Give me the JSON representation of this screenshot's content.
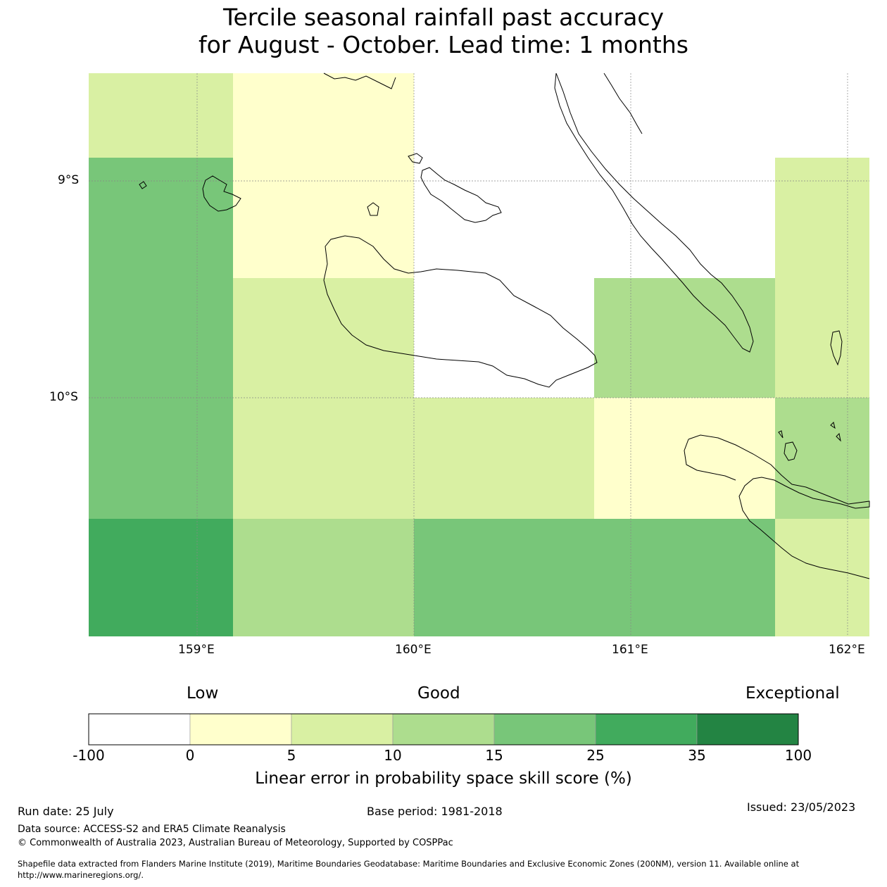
{
  "title_line1": "Tercile seasonal rainfall past accuracy",
  "title_line2": "for August - October. Lead time: 1 months",
  "map": {
    "lon_ticks": [
      "159°E",
      "160°E",
      "161°E",
      "162°E"
    ],
    "lat_ticks": [
      "9°S",
      "10°S"
    ],
    "gridlines": true,
    "coastline_color": "#000000"
  },
  "colors": {
    "white": "#ffffff",
    "light_yellow": "#ffffcc",
    "pale_green": "#d9f0a3",
    "light_green": "#addd8e",
    "mid_green": "#78c679",
    "green": "#41ab5d",
    "dark_green": "#238443"
  },
  "grid_cells": [
    {
      "row": 0,
      "col": 0,
      "color": "pale_green"
    },
    {
      "row": 0,
      "col": 1,
      "color": "light_yellow"
    },
    {
      "row": 0,
      "col": 2,
      "color": "white"
    },
    {
      "row": 0,
      "col": 3,
      "color": "white"
    },
    {
      "row": 0,
      "col": 4,
      "color": "white"
    },
    {
      "row": 1,
      "col": 0,
      "color": "mid_green"
    },
    {
      "row": 1,
      "col": 1,
      "color": "light_yellow"
    },
    {
      "row": 1,
      "col": 2,
      "color": "white"
    },
    {
      "row": 1,
      "col": 3,
      "color": "white"
    },
    {
      "row": 1,
      "col": 4,
      "color": "pale_green"
    },
    {
      "row": 2,
      "col": 0,
      "color": "mid_green"
    },
    {
      "row": 2,
      "col": 1,
      "color": "pale_green"
    },
    {
      "row": 2,
      "col": 2,
      "color": "white"
    },
    {
      "row": 2,
      "col": 3,
      "color": "light_green"
    },
    {
      "row": 2,
      "col": 4,
      "color": "pale_green"
    },
    {
      "row": 3,
      "col": 0,
      "color": "mid_green"
    },
    {
      "row": 3,
      "col": 1,
      "color": "pale_green"
    },
    {
      "row": 3,
      "col": 2,
      "color": "pale_green"
    },
    {
      "row": 3,
      "col": 3,
      "color": "light_yellow"
    },
    {
      "row": 3,
      "col": 4,
      "color": "light_green"
    },
    {
      "row": 4,
      "col": 0,
      "color": "green"
    },
    {
      "row": 4,
      "col": 1,
      "color": "light_green"
    },
    {
      "row": 4,
      "col": 2,
      "color": "mid_green"
    },
    {
      "row": 4,
      "col": 3,
      "color": "mid_green"
    },
    {
      "row": 4,
      "col": 4,
      "color": "pale_green"
    }
  ],
  "colorbar": {
    "category_labels": [
      "Low",
      "Good",
      "Exceptional"
    ],
    "tick_labels": [
      "-100",
      "0",
      "5",
      "10",
      "15",
      "25",
      "35",
      "100"
    ],
    "segment_colors": [
      "#ffffff",
      "#ffffcc",
      "#d9f0a3",
      "#addd8e",
      "#78c679",
      "#41ab5d",
      "#238443"
    ],
    "title": "Linear error in probability space skill score (%)"
  },
  "footer": {
    "run_date": "Run date: 25 July",
    "base_period": "Base period: 1981-2018",
    "issued": "Issued: 23/05/2023",
    "data_source": "Data source: ACCESS-S2 and ERA5 Climate Reanalysis",
    "copyright": "© Commonwealth of Australia 2023, Australian Bureau of Meteorology, Supported by COSPPac",
    "shapefile_line1": "Shapefile data extracted from Flanders Marine Institute (2019), Maritime Boundaries Geodatabase: Maritime Boundaries and Exclusive Economic Zones (200NM), version 11. Available online at",
    "shapefile_line2": "http://www.marineregions.org/."
  }
}
